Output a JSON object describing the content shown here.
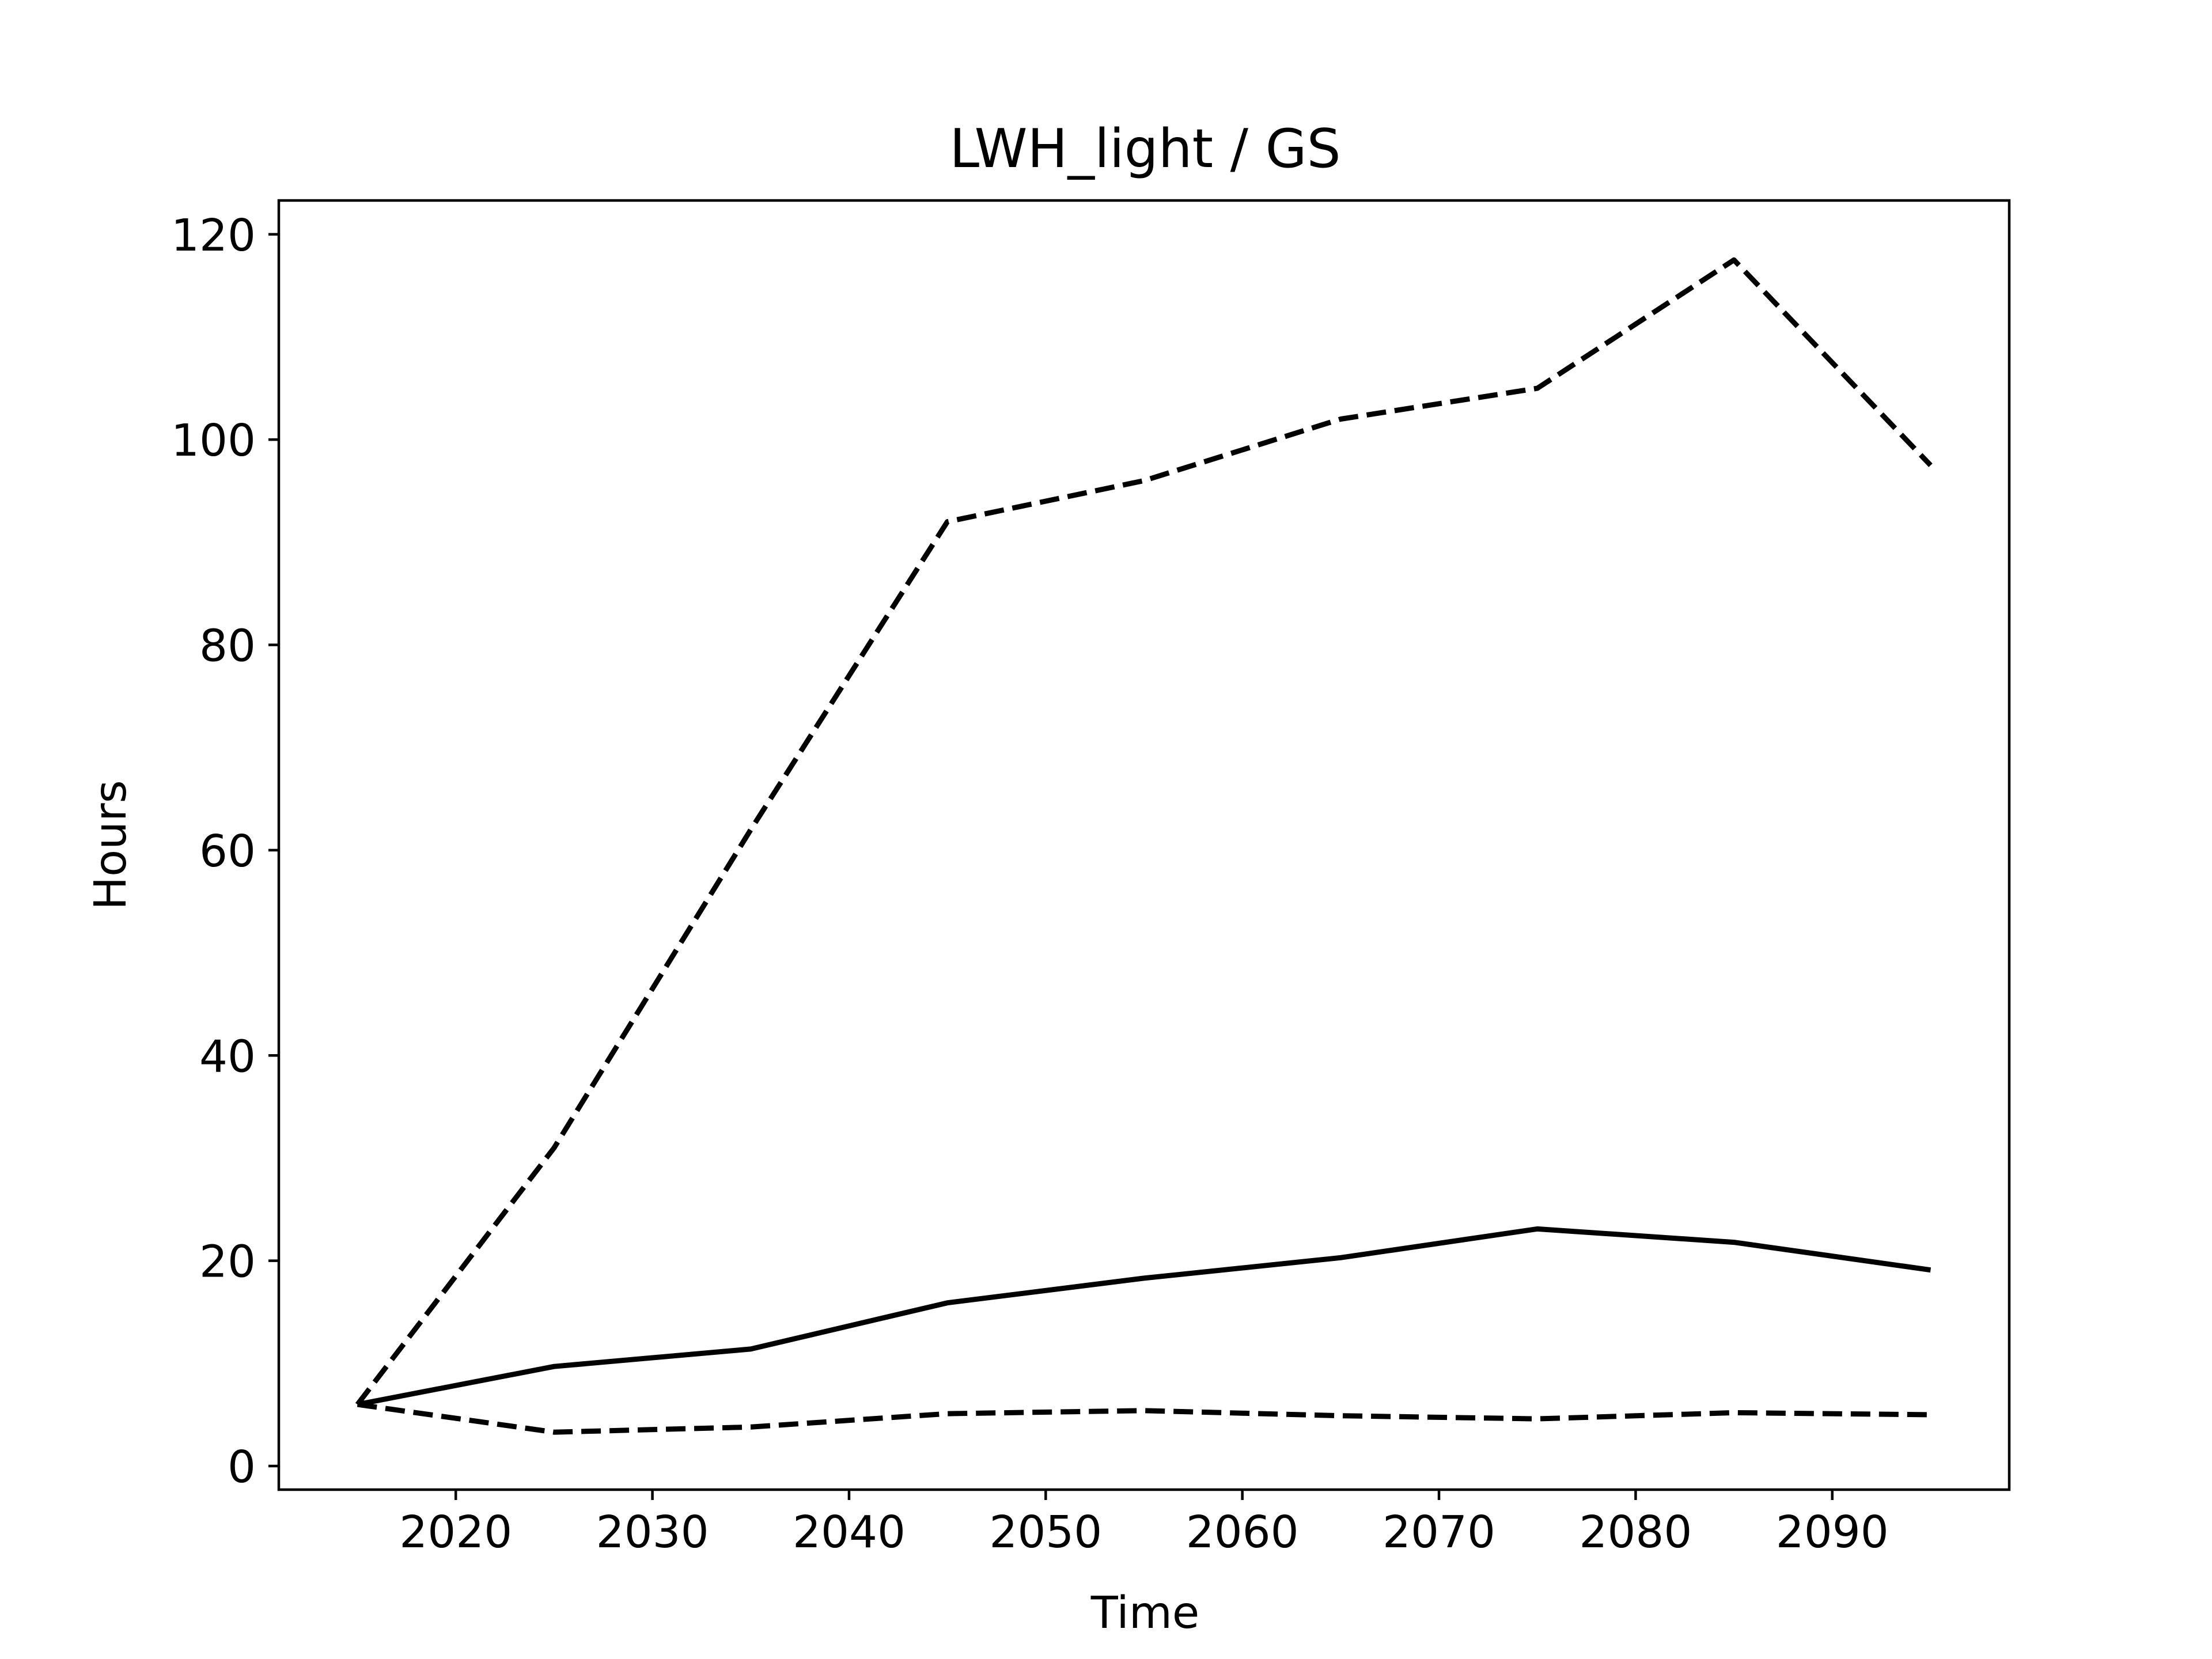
{
  "chart_data": {
    "type": "line",
    "title": "LWH_light / GS",
    "xlabel": "Time",
    "ylabel": "Hours",
    "xlim": [
      2011,
      2099
    ],
    "ylim": [
      -2.3,
      123.3
    ],
    "xticks": [
      2020,
      2030,
      2040,
      2050,
      2060,
      2070,
      2080,
      2090
    ],
    "yticks": [
      0,
      20,
      40,
      60,
      80,
      100,
      120
    ],
    "grid": false,
    "legend": "none",
    "x": [
      2015,
      2025,
      2035,
      2045,
      2055,
      2065,
      2075,
      2085,
      2095
    ],
    "series": [
      {
        "style": "dashed",
        "color": "#000000",
        "values": [
          6.0,
          31.0,
          62.0,
          92.0,
          96.0,
          102.0,
          105.0,
          117.5,
          97.5
        ]
      },
      {
        "style": "solid",
        "color": "#000000",
        "values": [
          6.0,
          9.7,
          11.4,
          15.9,
          18.3,
          20.3,
          23.1,
          21.8,
          19.1
        ]
      },
      {
        "style": "dashed",
        "color": "#000000",
        "values": [
          6.0,
          3.3,
          3.8,
          5.1,
          5.4,
          4.9,
          4.6,
          5.2,
          5.0
        ]
      }
    ]
  }
}
